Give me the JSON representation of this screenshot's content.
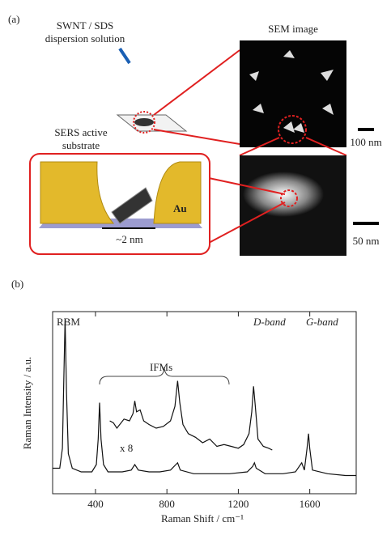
{
  "panel_a": {
    "label": "(a)",
    "dispersion": [
      "SWNT / SDS",
      "dispersion solution"
    ],
    "substrate": [
      "SERS active",
      "substrate"
    ],
    "sem_title": "SEM image",
    "scale_top": "100 nm",
    "metal": "Au",
    "gap": "~2 nm",
    "scale_bottom": "50 nm"
  },
  "panel_b_label": "(b)",
  "chart_data": {
    "type": "line",
    "xlabel": "Raman Shift / cm⁻¹",
    "ylabel": "Raman Intensity / a.u.",
    "xlim": [
      160,
      1860
    ],
    "ylim": [
      0,
      100
    ],
    "xticks": [
      400,
      800,
      1200,
      1600
    ],
    "annotations": [
      "RBM",
      "IFMs",
      "D-band",
      "G-band",
      "x 8"
    ],
    "series": [
      {
        "color": "#111111",
        "x": [
          160,
          200,
          215,
          222,
          230,
          238,
          248,
          270,
          320,
          380,
          405,
          415,
          423,
          431,
          445,
          470,
          550,
          600,
          620,
          640,
          700,
          760,
          820,
          850,
          860,
          875,
          950,
          1050,
          1150,
          1250,
          1280,
          1290,
          1300,
          1350,
          1450,
          1520,
          1555,
          1570,
          1585,
          1593,
          1600,
          1615,
          1700,
          1800,
          1860
        ],
        "values": [
          14,
          14,
          25,
          60,
          96,
          55,
          22,
          14,
          12,
          12,
          16,
          30,
          50,
          30,
          16,
          12,
          12,
          13,
          16,
          13,
          12,
          12,
          13,
          16,
          17,
          13,
          11,
          11,
          11,
          12,
          15,
          17,
          14,
          11,
          11,
          12,
          17,
          13,
          25,
          33,
          25,
          13,
          11,
          10,
          10
        ]
      },
      {
        "color": "#111111",
        "x": [
          480,
          500,
          520,
          560,
          590,
          610,
          620,
          630,
          650,
          670,
          700,
          740,
          780,
          820,
          845,
          860,
          872,
          890,
          920,
          960,
          1000,
          1040,
          1080,
          1120,
          1160,
          1200,
          1230,
          1260,
          1275,
          1285,
          1295,
          1310,
          1340,
          1370,
          1390
        ],
        "values": [
          40,
          39,
          36,
          41,
          40,
          44,
          51,
          45,
          46,
          40,
          38,
          36,
          37,
          40,
          48,
          62,
          50,
          38,
          33,
          31,
          28,
          30,
          26,
          27,
          26,
          25,
          27,
          33,
          45,
          59,
          48,
          30,
          26,
          25,
          24
        ]
      }
    ]
  }
}
